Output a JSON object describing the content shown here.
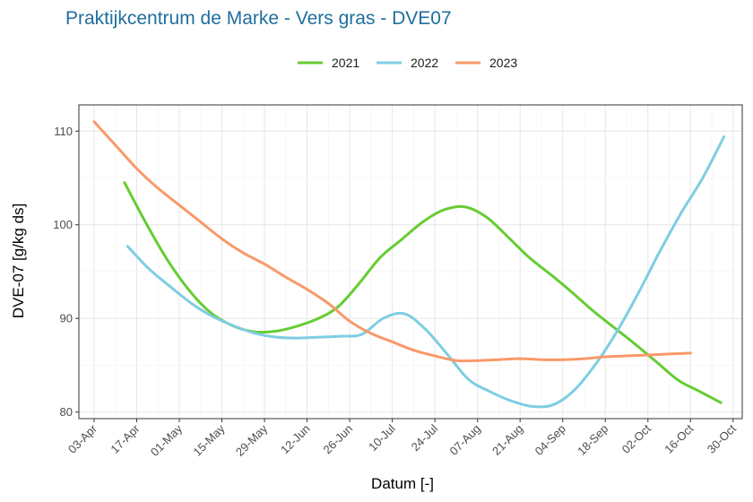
{
  "chart_data": {
    "type": "line",
    "title": "Praktijkcentrum de Marke - Vers gras - DVE07",
    "xlabel": "Datum [-]",
    "ylabel": "DVE-07 [g/kg ds]",
    "x_ticks": [
      "03-Apr",
      "17-Apr",
      "01-May",
      "15-May",
      "29-May",
      "12-Jun",
      "26-Jun",
      "10-Jul",
      "24-Jul",
      "07-Aug",
      "21-Aug",
      "04-Sep",
      "18-Sep",
      "02-Oct",
      "16-Oct",
      "30-Oct"
    ],
    "y_ticks": [
      80,
      90,
      100,
      110
    ],
    "ylim": [
      79.3,
      112.8
    ],
    "xlim": [
      "2023-03-29",
      "2023-11-02"
    ],
    "grid": true,
    "legend_position": "top",
    "series": [
      {
        "name": "2021",
        "color": "#66cc33",
        "x": [
          "2023-04-13",
          "2023-04-20",
          "2023-04-27",
          "2023-05-04",
          "2023-05-11",
          "2023-05-18",
          "2023-05-25",
          "2023-06-01",
          "2023-06-08",
          "2023-06-15",
          "2023-06-22",
          "2023-06-29",
          "2023-07-06",
          "2023-07-13",
          "2023-07-20",
          "2023-07-27",
          "2023-08-03",
          "2023-08-10",
          "2023-08-17",
          "2023-08-24",
          "2023-08-31",
          "2023-09-07",
          "2023-09-14",
          "2023-09-21",
          "2023-09-28",
          "2023-10-05",
          "2023-10-12",
          "2023-10-19",
          "2023-10-26"
        ],
        "values": [
          104.5,
          100.2,
          96.3,
          93.1,
          90.7,
          89.3,
          88.6,
          88.6,
          89.1,
          89.9,
          91.2,
          93.7,
          96.5,
          98.4,
          100.3,
          101.6,
          101.9,
          100.8,
          98.7,
          96.5,
          94.7,
          92.8,
          90.8,
          89.0,
          87.2,
          85.3,
          83.4,
          82.2,
          81.0
        ]
      },
      {
        "name": "2022",
        "color": "#7ecde3",
        "x": [
          "2023-04-14",
          "2023-04-21",
          "2023-04-28",
          "2023-05-05",
          "2023-05-12",
          "2023-05-19",
          "2023-05-26",
          "2023-06-02",
          "2023-06-09",
          "2023-06-16",
          "2023-06-23",
          "2023-06-30",
          "2023-07-07",
          "2023-07-14",
          "2023-07-21",
          "2023-07-28",
          "2023-08-04",
          "2023-08-11",
          "2023-08-18",
          "2023-08-25",
          "2023-09-01",
          "2023-09-08",
          "2023-09-15",
          "2023-09-22",
          "2023-09-29",
          "2023-10-06",
          "2023-10-13",
          "2023-10-20",
          "2023-10-27"
        ],
        "values": [
          97.7,
          95.3,
          93.4,
          91.6,
          90.2,
          89.2,
          88.4,
          88.0,
          87.9,
          88.0,
          88.1,
          88.3,
          90.0,
          90.5,
          88.8,
          86.2,
          83.5,
          82.2,
          81.2,
          80.6,
          80.8,
          82.4,
          85.2,
          88.7,
          92.8,
          97.2,
          101.3,
          105.0,
          109.4
        ]
      },
      {
        "name": "2023",
        "color": "#f9996a",
        "x": [
          "2023-04-03",
          "2023-04-10",
          "2023-04-17",
          "2023-04-24",
          "2023-05-01",
          "2023-05-08",
          "2023-05-15",
          "2023-05-22",
          "2023-05-29",
          "2023-06-05",
          "2023-06-12",
          "2023-06-19",
          "2023-06-26",
          "2023-07-03",
          "2023-07-10",
          "2023-07-17",
          "2023-07-24",
          "2023-07-31",
          "2023-08-07",
          "2023-08-14",
          "2023-08-21",
          "2023-08-28",
          "2023-09-04",
          "2023-09-11",
          "2023-09-18",
          "2023-09-25",
          "2023-10-02",
          "2023-10-09",
          "2023-10-16"
        ],
        "values": [
          111.0,
          108.5,
          106.0,
          103.9,
          102.1,
          100.3,
          98.5,
          97.0,
          95.8,
          94.4,
          93.1,
          91.6,
          89.7,
          88.4,
          87.5,
          86.6,
          86.0,
          85.5,
          85.5,
          85.6,
          85.7,
          85.6,
          85.6,
          85.7,
          85.9,
          86.0,
          86.1,
          86.2,
          86.3
        ]
      }
    ]
  }
}
